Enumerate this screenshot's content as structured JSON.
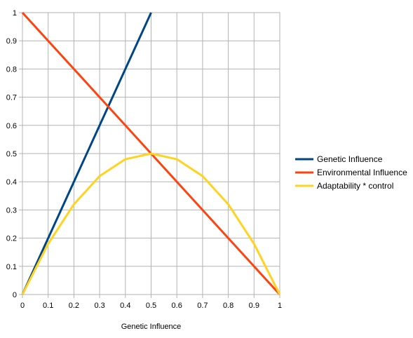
{
  "chart_data": {
    "type": "line",
    "title": "",
    "xlabel": "Genetic Influence",
    "ylabel": "",
    "xlim": [
      0,
      1
    ],
    "ylim": [
      0,
      1
    ],
    "grid": true,
    "legend_position": "right",
    "x_ticks": [
      "0",
      "0.1",
      "0.2",
      "0.3",
      "0.4",
      "0.5",
      "0.6",
      "0.7",
      "0.8",
      "0.9",
      "1"
    ],
    "y_ticks": [
      "0",
      "0.1",
      "0.2",
      "0.3",
      "0.4",
      "0.5",
      "0.6",
      "0.7",
      "0.8",
      "0.9",
      "1"
    ],
    "series": [
      {
        "name": "Genetic Influence",
        "color": "#004586",
        "x": [
          0,
          0.1,
          0.2,
          0.3,
          0.4,
          0.5
        ],
        "y": [
          0,
          0.2,
          0.4,
          0.6,
          0.8,
          1.0
        ]
      },
      {
        "name": "Environmental Influence",
        "color": "#ff420e",
        "x": [
          0,
          0.1,
          0.2,
          0.3,
          0.4,
          0.5,
          0.6,
          0.7,
          0.8,
          0.9,
          1
        ],
        "y": [
          1,
          0.9,
          0.8,
          0.7,
          0.6,
          0.5,
          0.4,
          0.3,
          0.2,
          0.1,
          0
        ]
      },
      {
        "name": "Adaptability * control",
        "color": "#ffd320",
        "x": [
          0,
          0.1,
          0.2,
          0.3,
          0.4,
          0.5,
          0.6,
          0.7,
          0.8,
          0.9,
          1
        ],
        "y": [
          0,
          0.18,
          0.32,
          0.42,
          0.48,
          0.5,
          0.48,
          0.42,
          0.32,
          0.18,
          0
        ]
      }
    ]
  }
}
